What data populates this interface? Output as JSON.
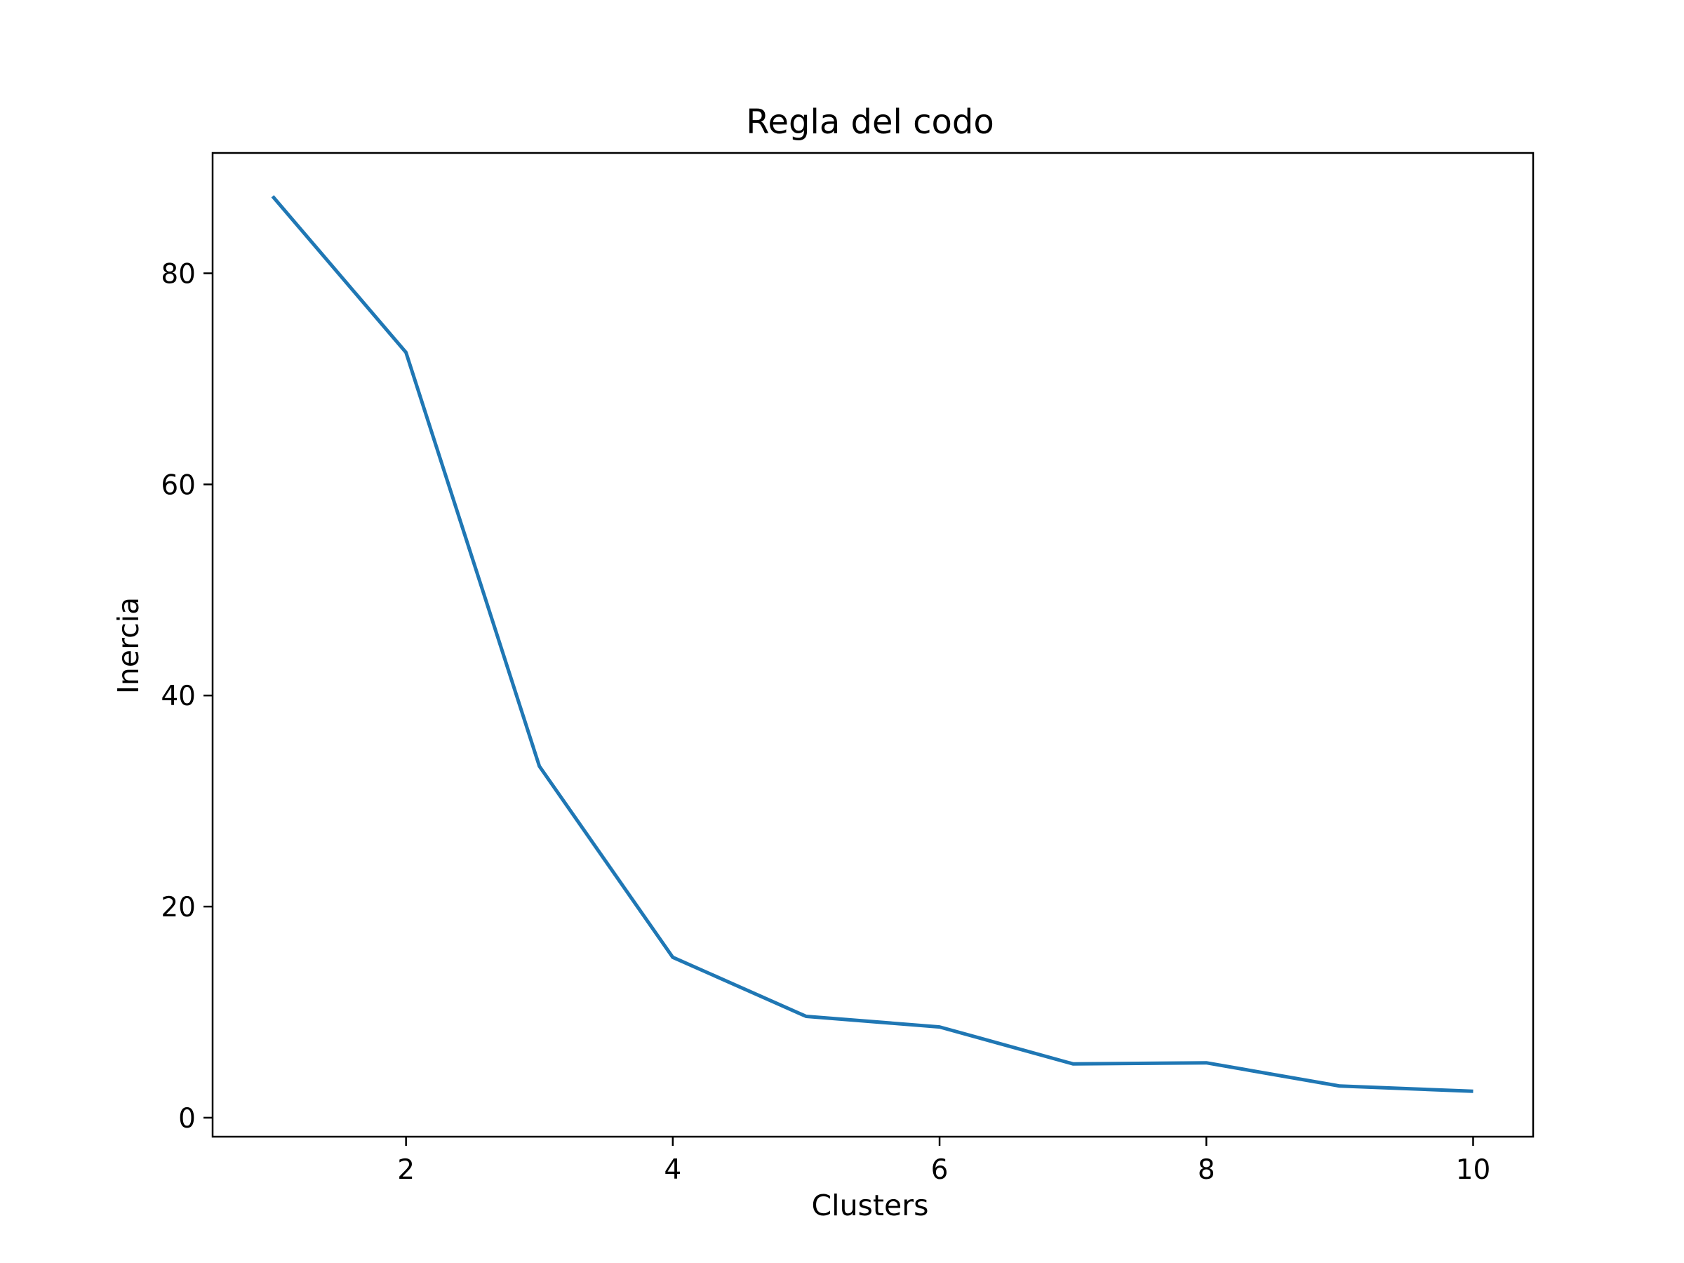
{
  "chart_data": {
    "type": "line",
    "title": "Regla del codo",
    "xlabel": "Clusters",
    "ylabel": "Inercia",
    "x": [
      1,
      2,
      3,
      4,
      5,
      6,
      7,
      8,
      9,
      10
    ],
    "series": [
      {
        "values": [
          87.3,
          72.5,
          33.3,
          15.2,
          9.6,
          8.6,
          5.1,
          5.2,
          3.0,
          2.5
        ],
        "color": "#1f77b4"
      }
    ],
    "xlim": [
      0.55,
      10.45
    ],
    "ylim": [
      -1.8,
      91.4
    ],
    "xticks": [
      2,
      4,
      6,
      8,
      10
    ],
    "yticks": [
      0,
      20,
      40,
      60,
      80
    ],
    "grid": false
  }
}
